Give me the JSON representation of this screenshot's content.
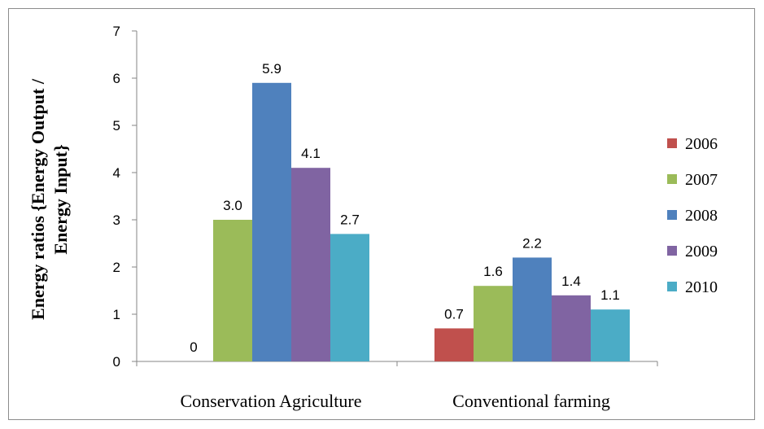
{
  "chart_data": {
    "type": "bar",
    "title": "",
    "ylabel_lines": [
      "Energy ratios {Energy Output /",
      "Energy Input}"
    ],
    "xlabel": "",
    "ylim": [
      0,
      7
    ],
    "yticks": [
      0,
      1,
      2,
      3,
      4,
      5,
      6,
      7
    ],
    "categories": [
      "Conservation Agriculture",
      "Conventional farming"
    ],
    "series": [
      {
        "name": "2006",
        "color": "#c0504d",
        "values": [
          0,
          0.7
        ],
        "labels": [
          "0",
          "0.7"
        ]
      },
      {
        "name": "2007",
        "color": "#9bbb59",
        "values": [
          3.0,
          1.6
        ],
        "labels": [
          "3.0",
          "1.6"
        ]
      },
      {
        "name": "2008",
        "color": "#4f81bd",
        "values": [
          5.9,
          2.2
        ],
        "labels": [
          "5.9",
          "2.2"
        ]
      },
      {
        "name": "2009",
        "color": "#8064a2",
        "values": [
          4.1,
          1.4
        ],
        "labels": [
          "4.1",
          "1.4"
        ]
      },
      {
        "name": "2010",
        "color": "#4bacc6",
        "values": [
          2.7,
          1.1
        ],
        "labels": [
          "2.7",
          "1.1"
        ]
      }
    ],
    "legend": "right",
    "grid": false
  }
}
